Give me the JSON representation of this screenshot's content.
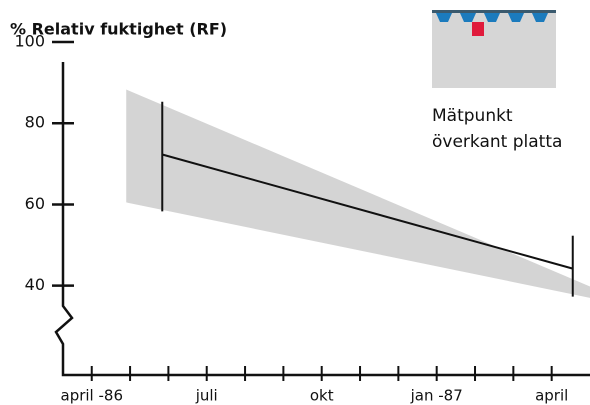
{
  "chart_data": {
    "type": "line",
    "title": "% Relativ fuktighet (RF)",
    "annotation": [
      "Mätpunkt",
      "överkant platta"
    ],
    "x": [
      1.84,
      12.55
    ],
    "series": [
      {
        "values": [
          72.3,
          44.2
        ],
        "low": [
          58.3,
          37.3
        ],
        "high": [
          85.3,
          52.3
        ],
        "color": "#111111"
      }
    ],
    "band": {
      "x": [
        0.9,
        13
      ],
      "upper": [
        88.3,
        39.8
      ],
      "lower": [
        60.5,
        37.0
      ],
      "color": "#d4d4d4"
    },
    "xlim": [
      -0.75,
      13
    ],
    "minor_xticks": [
      0,
      1,
      2,
      3,
      4,
      5,
      6,
      7,
      8,
      9,
      10,
      11,
      12
    ],
    "xtick_labels": [
      {
        "value": 0,
        "label": "april -86"
      },
      {
        "value": 3,
        "label": "juli"
      },
      {
        "value": 6,
        "label": "okt"
      },
      {
        "value": 9,
        "label": "jan -87"
      },
      {
        "value": 12,
        "label": "april"
      }
    ],
    "ylim": [
      18,
      100
    ],
    "yticks": [
      40,
      60,
      80,
      100
    ],
    "grid": false
  }
}
